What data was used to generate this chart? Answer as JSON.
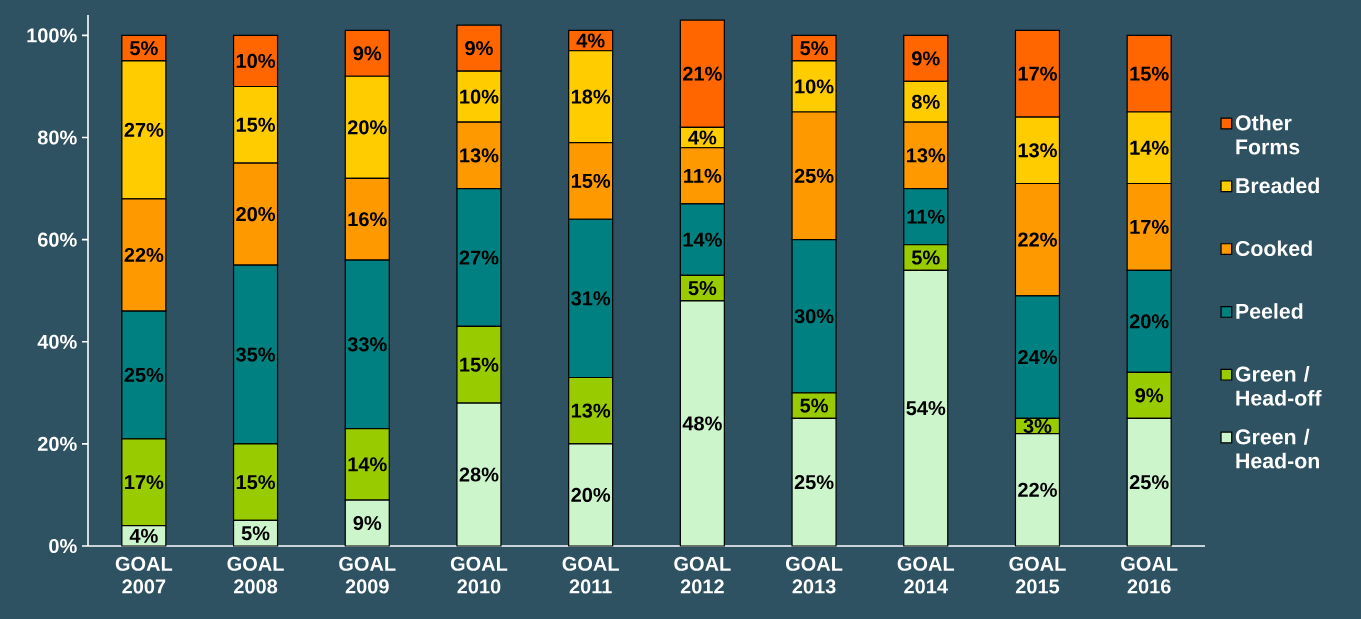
{
  "chart_data": {
    "type": "bar",
    "stacked": true,
    "legend": "right",
    "grid": false,
    "categories": [
      "GOAL 2007",
      "GOAL 2008",
      "GOAL 2009",
      "GOAL 2010",
      "GOAL 2011",
      "GOAL 2012",
      "GOAL 2013",
      "GOAL 2014",
      "GOAL 2015",
      "GOAL 2016"
    ],
    "ylim": [
      0,
      104
    ],
    "yticks": [
      {
        "value": 0,
        "label": "0%"
      },
      {
        "value": 20,
        "label": "20%"
      },
      {
        "value": 40,
        "label": "40%"
      },
      {
        "value": 60,
        "label": "60%"
      },
      {
        "value": 80,
        "label": "80%"
      },
      {
        "value": 100,
        "label": "100%"
      }
    ],
    "series": [
      {
        "name": "Green / Head-on",
        "color": "#ccf5cc",
        "values": [
          4,
          5,
          9,
          28,
          20,
          48,
          25,
          54,
          22,
          25
        ],
        "value_labels": [
          "4%",
          "5%",
          "9%",
          "28%",
          "20%",
          "48%",
          "25%",
          "54%",
          "22%",
          "25%"
        ]
      },
      {
        "name": "Green / Head-off",
        "color": "#99cc00",
        "values": [
          17,
          15,
          14,
          15,
          13,
          5,
          5,
          5,
          3,
          9
        ],
        "value_labels": [
          "17%",
          "15%",
          "14%",
          "15%",
          "13%",
          "5%",
          "5%",
          "5%",
          "3%",
          "9%"
        ]
      },
      {
        "name": "Peeled",
        "color": "#008080",
        "values": [
          25,
          35,
          33,
          27,
          31,
          14,
          30,
          11,
          24,
          20
        ],
        "value_labels": [
          "25%",
          "35%",
          "33%",
          "27%",
          "31%",
          "14%",
          "30%",
          "11%",
          "24%",
          "20%"
        ]
      },
      {
        "name": "Cooked",
        "color": "#ff9900",
        "values": [
          22,
          20,
          16,
          13,
          15,
          11,
          25,
          13,
          22,
          17
        ],
        "value_labels": [
          "22%",
          "20%",
          "16%",
          "13%",
          "15%",
          "11%",
          "25%",
          "13%",
          "22%",
          "17%"
        ]
      },
      {
        "name": "Breaded",
        "color": "#ffcc00",
        "values": [
          27,
          15,
          20,
          10,
          18,
          4,
          10,
          8,
          13,
          14
        ],
        "value_labels": [
          "27%",
          "15%",
          "20%",
          "10%",
          "18%",
          "4%",
          "10%",
          "8%",
          "13%",
          "14%"
        ]
      },
      {
        "name": "Other Forms",
        "color": "#ff6600",
        "values": [
          5,
          10,
          9,
          9,
          4,
          21,
          5,
          9,
          17,
          15
        ],
        "value_labels": [
          "5%",
          "10%",
          "9%",
          "9%",
          "4%",
          "21%",
          "5%",
          "9%",
          "17%",
          "15%"
        ]
      }
    ]
  }
}
